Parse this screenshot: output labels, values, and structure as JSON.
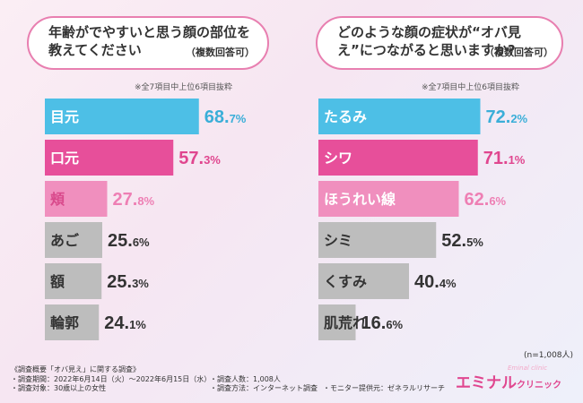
{
  "chart_data": [
    {
      "type": "bar",
      "orientation": "horizontal",
      "title": "年齢がでやすいと思う顔の部位を教えてください",
      "title_suffix": "（複数回答可）",
      "note": "※全7項目中上位6項目抜粋",
      "categories": [
        "目元",
        "口元",
        "頬",
        "あご",
        "額",
        "輪郭"
      ],
      "values": [
        68.7,
        57.3,
        27.8,
        25.6,
        25.3,
        24.1
      ],
      "value_labels": [
        [
          "68.",
          "7%"
        ],
        [
          "57.",
          "3%"
        ],
        [
          "27.",
          "8%"
        ],
        [
          "25.",
          "6%"
        ],
        [
          "25.",
          "3%"
        ],
        [
          "24.",
          "1%"
        ]
      ],
      "colors": [
        "#4dbfe6",
        "#e74f9a",
        "#f08fbe",
        "#bdbdbd",
        "#bdbdbd",
        "#bdbdbd"
      ],
      "label_colors": [
        "#ffffff",
        "#ffffff",
        "#d94a8c",
        "#333333",
        "#333333",
        "#333333"
      ],
      "value_colors": [
        "#3aaed8",
        "#e0468f",
        "#ee7fb4",
        "#333333",
        "#333333",
        "#333333"
      ],
      "xlim": [
        0,
        100
      ]
    },
    {
      "type": "bar",
      "orientation": "horizontal",
      "title": "どのような顔の症状が“オバ見え”につながると思いますか?",
      "title_suffix": "（複数回答可）",
      "note": "※全7項目中上位6項目抜粋",
      "categories": [
        "たるみ",
        "シワ",
        "ほうれい線",
        "シミ",
        "くすみ",
        "肌荒れ"
      ],
      "values": [
        72.2,
        71.1,
        62.6,
        52.5,
        40.4,
        16.6
      ],
      "value_labels": [
        [
          "72.",
          "2%"
        ],
        [
          "71.",
          "1%"
        ],
        [
          "62.",
          "6%"
        ],
        [
          "52.",
          "5%"
        ],
        [
          "40.",
          "4%"
        ],
        [
          "16.",
          "6%"
        ]
      ],
      "colors": [
        "#4dbfe6",
        "#e74f9a",
        "#f08fbe",
        "#bdbdbd",
        "#bdbdbd",
        "#bdbdbd"
      ],
      "label_colors": [
        "#ffffff",
        "#ffffff",
        "#ffffff",
        "#333333",
        "#333333",
        "#333333"
      ],
      "value_colors": [
        "#3aaed8",
        "#e0468f",
        "#ee7fb4",
        "#333333",
        "#333333",
        "#333333"
      ],
      "xlim": [
        0,
        100
      ]
    }
  ],
  "sample_note": "(n=1,008人)",
  "footer": {
    "heading": "《調査概要「オバ見え」に関する調査》",
    "period": "・調査期間：2022年6月14日（火）〜2022年6月15日（水）",
    "people": "・調査人数：1,008人",
    "target": "・調査対象：30歳以上の女性",
    "method": "・調査方法：インターネット調査",
    "provider": "・モニター提供元：ゼネラルリサーチ"
  },
  "logo": {
    "main": "エミナル",
    "sub": "クリニック",
    "script": "Eminal clinic"
  }
}
